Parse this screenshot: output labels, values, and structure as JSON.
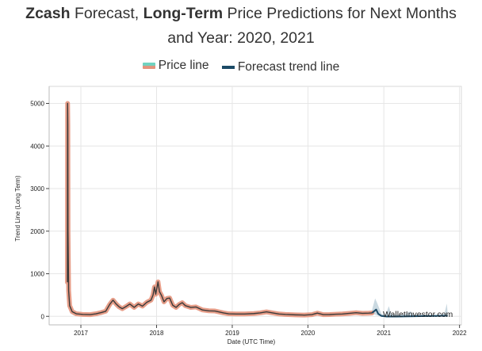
{
  "header": {
    "title_part1": "Zcash",
    "title_part2": " Forecast, ",
    "title_part3": "Long-Term",
    "title_part4": " Price Predictions for Next Months",
    "title_line2": "and Year: 2020, 2021"
  },
  "legend": {
    "price_label": "Price line",
    "forecast_label": "Forecast trend line"
  },
  "watermark": "WalletInvestor.com",
  "colors": {
    "price_halo": "#e4937c",
    "price_line": "#3a3a3a",
    "forecast_line": "#1b4a66",
    "forecast_band": "#9fb9c9",
    "legend_price_top": "#6fd3c1",
    "grid": "#e6e6e6"
  },
  "chart_data": {
    "type": "line",
    "xlabel": "Date (UTC Time)",
    "ylabel": "Trend Line (Long Term)",
    "xlim": [
      "2016-08-01",
      "2022-01-10"
    ],
    "ylim": [
      -200,
      5400
    ],
    "x_ticks": [
      "2017",
      "2018",
      "2019",
      "2020",
      "2021",
      "2022"
    ],
    "y_ticks": [
      0,
      1000,
      2000,
      3000,
      4000,
      5000
    ],
    "grid": true,
    "legend_position": "top",
    "series": [
      {
        "name": "Price line",
        "points": [
          [
            "2016-10-28",
            800
          ],
          [
            "2016-10-29",
            5000
          ],
          [
            "2016-10-30",
            4500
          ],
          [
            "2016-10-31",
            2000
          ],
          [
            "2016-11-03",
            600
          ],
          [
            "2016-11-08",
            250
          ],
          [
            "2016-11-20",
            110
          ],
          [
            "2016-12-10",
            60
          ],
          [
            "2017-01-10",
            45
          ],
          [
            "2017-02-15",
            40
          ],
          [
            "2017-03-15",
            60
          ],
          [
            "2017-04-10",
            90
          ],
          [
            "2017-05-01",
            120
          ],
          [
            "2017-05-20",
            280
          ],
          [
            "2017-06-05",
            380
          ],
          [
            "2017-06-20",
            290
          ],
          [
            "2017-07-05",
            220
          ],
          [
            "2017-07-20",
            180
          ],
          [
            "2017-08-10",
            240
          ],
          [
            "2017-08-25",
            290
          ],
          [
            "2017-09-15",
            210
          ],
          [
            "2017-10-05",
            290
          ],
          [
            "2017-10-25",
            240
          ],
          [
            "2017-11-15",
            330
          ],
          [
            "2017-12-05",
            380
          ],
          [
            "2017-12-15",
            500
          ],
          [
            "2017-12-22",
            690
          ],
          [
            "2017-12-28",
            520
          ],
          [
            "2018-01-02",
            650
          ],
          [
            "2018-01-08",
            810
          ],
          [
            "2018-01-15",
            580
          ],
          [
            "2018-01-25",
            490
          ],
          [
            "2018-02-06",
            340
          ],
          [
            "2018-02-20",
            420
          ],
          [
            "2018-03-05",
            430
          ],
          [
            "2018-03-20",
            260
          ],
          [
            "2018-04-05",
            210
          ],
          [
            "2018-04-20",
            280
          ],
          [
            "2018-05-05",
            320
          ],
          [
            "2018-05-20",
            250
          ],
          [
            "2018-06-15",
            210
          ],
          [
            "2018-07-10",
            220
          ],
          [
            "2018-08-10",
            150
          ],
          [
            "2018-09-10",
            130
          ],
          [
            "2018-10-10",
            125
          ],
          [
            "2018-11-20",
            80
          ],
          [
            "2018-12-15",
            60
          ],
          [
            "2019-01-20",
            55
          ],
          [
            "2019-03-01",
            55
          ],
          [
            "2019-04-15",
            65
          ],
          [
            "2019-05-15",
            80
          ],
          [
            "2019-06-15",
            105
          ],
          [
            "2019-07-15",
            80
          ],
          [
            "2019-08-15",
            55
          ],
          [
            "2019-09-15",
            45
          ],
          [
            "2019-11-01",
            35
          ],
          [
            "2019-12-15",
            30
          ],
          [
            "2020-01-20",
            40
          ],
          [
            "2020-02-15",
            75
          ],
          [
            "2020-03-15",
            40
          ],
          [
            "2020-04-15",
            42
          ],
          [
            "2020-05-15",
            50
          ],
          [
            "2020-06-15",
            55
          ],
          [
            "2020-07-20",
            70
          ],
          [
            "2020-08-20",
            85
          ],
          [
            "2020-09-20",
            70
          ],
          [
            "2020-10-20",
            75
          ],
          [
            "2020-11-05",
            80
          ]
        ]
      },
      {
        "name": "Forecast trend line",
        "points": [
          [
            "2020-11-05",
            80
          ],
          [
            "2020-11-15",
            120
          ],
          [
            "2020-11-25",
            160
          ],
          [
            "2020-12-05",
            60
          ],
          [
            "2020-12-20",
            10
          ],
          [
            "2021-01-15",
            -5
          ],
          [
            "2021-03-01",
            -5
          ],
          [
            "2021-05-01",
            0
          ],
          [
            "2021-07-01",
            5
          ],
          [
            "2021-09-01",
            10
          ],
          [
            "2021-11-05",
            15
          ]
        ],
        "band": [
          [
            "2020-11-05",
            60,
            150
          ],
          [
            "2020-11-20",
            40,
            420
          ],
          [
            "2020-12-01",
            20,
            300
          ],
          [
            "2020-12-20",
            -10,
            60
          ],
          [
            "2021-01-10",
            -15,
            40
          ],
          [
            "2021-01-25",
            -10,
            240
          ],
          [
            "2021-02-05",
            -10,
            60
          ],
          [
            "2021-03-10",
            -10,
            30
          ],
          [
            "2021-04-20",
            -10,
            60
          ],
          [
            "2021-05-10",
            -10,
            120
          ],
          [
            "2021-05-25",
            -10,
            40
          ],
          [
            "2021-07-15",
            -5,
            40
          ],
          [
            "2021-09-01",
            -5,
            30
          ],
          [
            "2021-10-20",
            -5,
            60
          ],
          [
            "2021-11-01",
            -5,
            300
          ],
          [
            "2021-11-05",
            -5,
            60
          ]
        ]
      }
    ]
  }
}
